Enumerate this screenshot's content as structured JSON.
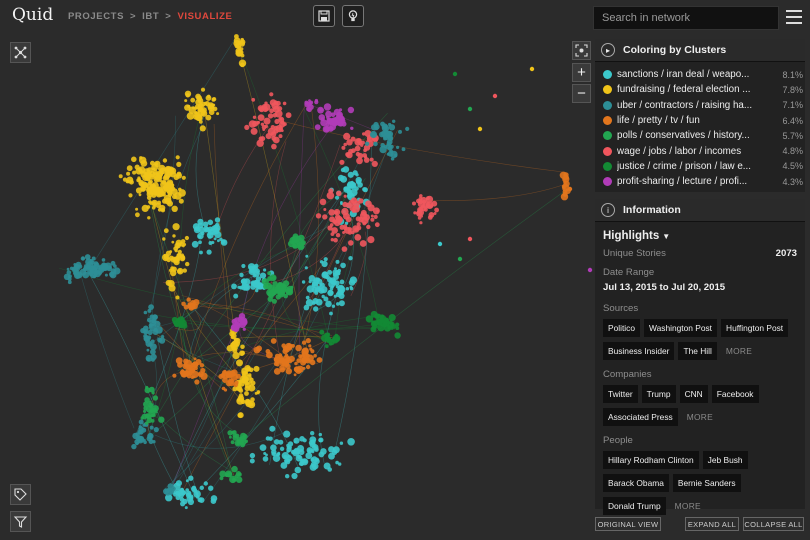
{
  "app": {
    "logo": "Quid"
  },
  "breadcrumb": {
    "projects": "PROJECTS",
    "sep": ">",
    "project": "IBT",
    "current": "VISUALIZE"
  },
  "search": {
    "placeholder": "Search in network"
  },
  "clusters_panel": {
    "title": "Coloring by Clusters",
    "items": [
      {
        "label": "sanctions / iran deal / weapo...",
        "pct": "8.1%",
        "color": "#3cc8cb"
      },
      {
        "label": "fundraising / federal election ...",
        "pct": "7.8%",
        "color": "#f0c419"
      },
      {
        "label": "uber / contractors / raising ha...",
        "pct": "7.1%",
        "color": "#2d8e96"
      },
      {
        "label": "life / pretty / tv / fun",
        "pct": "6.4%",
        "color": "#e2761d"
      },
      {
        "label": "polls / conservatives / history...",
        "pct": "5.7%",
        "color": "#22a651"
      },
      {
        "label": "wage / jobs / labor / incomes",
        "pct": "4.8%",
        "color": "#f0565d"
      },
      {
        "label": "justice / crime / prison / law e...",
        "pct": "4.5%",
        "color": "#138a34"
      },
      {
        "label": "profit-sharing / lecture / profi...",
        "pct": "4.3%",
        "color": "#b13cb8"
      }
    ]
  },
  "info_panel": {
    "title": "Information",
    "highlights": "Highlights",
    "unique_stories_label": "Unique Stories",
    "unique_stories_value": "2073",
    "date_range_label": "Date Range",
    "date_range_value": "Jul 13, 2015 to Jul 20, 2015",
    "sources_label": "Sources",
    "sources": [
      "Politico",
      "Washington Post",
      "Huffington Post",
      "Business Insider",
      "The Hill"
    ],
    "companies_label": "Companies",
    "companies": [
      "Twitter",
      "Trump",
      "CNN",
      "Facebook",
      "Associated Press"
    ],
    "people_label": "People",
    "people": [
      "Hillary Rodham Clinton",
      "Jeb Bush",
      "Barack Obama",
      "Bernie Sanders",
      "Donald Trump"
    ],
    "more": "MORE"
  },
  "footer": {
    "original_view": "ORIGINAL VIEW",
    "expand_all": "EXPAND ALL",
    "collapse_all": "COLLAPSE ALL"
  },
  "zoom": {
    "plus": "+",
    "minus": "−"
  }
}
